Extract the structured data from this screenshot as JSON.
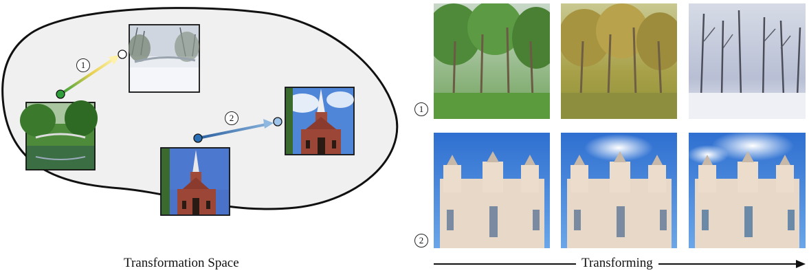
{
  "captions": {
    "left": "Transformation Space",
    "right": "Transforming"
  },
  "markers": [
    "1",
    "2"
  ],
  "colors": {
    "blob_fill": "#f0f0f0",
    "blob_stroke": "#111111",
    "arrow1_start": "#2e9e3a",
    "arrow1_end": "#fff0a0",
    "arrow2_start": "#2a6fb5",
    "arrow2_end": "#8fb8e0",
    "sky": "#3f86d8",
    "brick": "#8b3a2e"
  },
  "thumbnails": {
    "forest_bridge_summer": "forest-bridge-summer-image",
    "forest_bridge_winter": "forest-bridge-winter-image",
    "church_source": "church-source-image",
    "church_target": "church-target-image"
  },
  "sequence_rows": [
    {
      "marker": "1",
      "frames": [
        "summer-forest-image",
        "autumn-forest-image",
        "winter-forest-image"
      ]
    },
    {
      "marker": "2",
      "frames": [
        "cathedral-frame-1-image",
        "cathedral-frame-2-image",
        "cathedral-frame-3-image"
      ]
    }
  ]
}
